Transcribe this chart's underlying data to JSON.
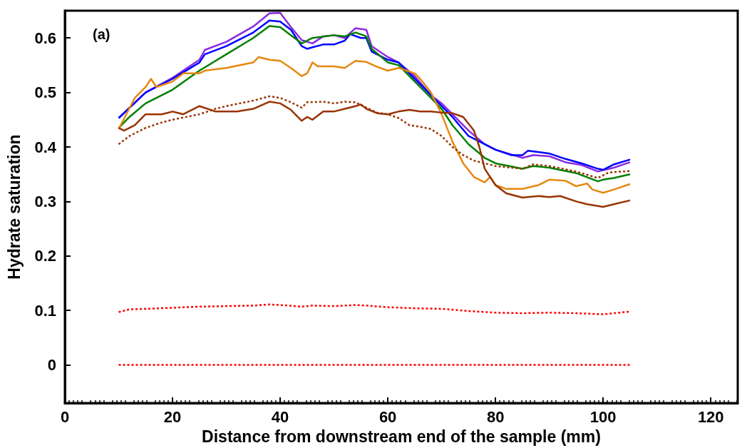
{
  "chart_data": {
    "type": "line",
    "xlabel": "Distance from downstream end of the sample (mm)",
    "ylabel": "Hydrate saturation",
    "annotations": [
      "(a)"
    ],
    "xlim": [
      0,
      125
    ],
    "xticks": [
      0,
      20,
      40,
      60,
      80,
      100,
      120
    ],
    "ylim": [
      -0.07,
      0.65
    ],
    "yticks": [
      0,
      0.1,
      0.2,
      0.3,
      0.4,
      0.5,
      0.6
    ],
    "grid": false,
    "marker": "none",
    "series": [
      {
        "color": "#8a2be2",
        "line_style": "solid",
        "x": [
          10,
          15,
          20,
          25,
          26,
          30,
          35,
          38,
          40,
          42,
          44,
          46,
          48,
          50,
          52,
          54,
          56,
          57,
          60,
          62,
          65,
          68,
          70,
          72,
          75,
          78,
          80,
          85,
          87,
          90,
          93,
          96,
          99,
          102,
          105
        ],
        "values": [
          0.453,
          0.5,
          0.527,
          0.56,
          0.578,
          0.593,
          0.621,
          0.645,
          0.646,
          0.62,
          0.596,
          0.59,
          0.603,
          0.605,
          0.6,
          0.618,
          0.615,
          0.585,
          0.565,
          0.555,
          0.53,
          0.495,
          0.48,
          0.46,
          0.43,
          0.405,
          0.395,
          0.38,
          0.385,
          0.383,
          0.372,
          0.367,
          0.355,
          0.362,
          0.372
        ]
      },
      {
        "color": "#0000ff",
        "line_style": "solid",
        "x": [
          10,
          15,
          20,
          25,
          26,
          30,
          35,
          38,
          40,
          42,
          44,
          45,
          46,
          48,
          50,
          52,
          53,
          55,
          56,
          57,
          60,
          62,
          65,
          68,
          70,
          72,
          75,
          78,
          80,
          83,
          85,
          86,
          90,
          93,
          96,
          99,
          100,
          102,
          105
        ],
        "values": [
          0.453,
          0.5,
          0.525,
          0.555,
          0.57,
          0.585,
          0.61,
          0.632,
          0.63,
          0.615,
          0.585,
          0.58,
          0.583,
          0.588,
          0.588,
          0.595,
          0.607,
          0.6,
          0.6,
          0.575,
          0.56,
          0.555,
          0.525,
          0.495,
          0.475,
          0.455,
          0.42,
          0.405,
          0.395,
          0.385,
          0.385,
          0.393,
          0.388,
          0.378,
          0.37,
          0.36,
          0.358,
          0.368,
          0.377
        ]
      },
      {
        "color": "#008000",
        "line_style": "solid",
        "x": [
          10,
          12,
          15,
          20,
          25,
          30,
          35,
          38,
          40,
          42,
          44,
          46,
          50,
          52,
          54,
          56,
          57,
          60,
          62,
          65,
          68,
          70,
          72,
          75,
          78,
          80,
          85,
          87,
          90,
          95,
          99,
          100,
          102,
          105
        ],
        "values": [
          0.435,
          0.455,
          0.48,
          0.505,
          0.54,
          0.57,
          0.6,
          0.622,
          0.62,
          0.605,
          0.59,
          0.6,
          0.605,
          0.603,
          0.61,
          0.603,
          0.58,
          0.555,
          0.55,
          0.52,
          0.49,
          0.47,
          0.44,
          0.405,
          0.38,
          0.37,
          0.36,
          0.365,
          0.362,
          0.352,
          0.337,
          0.34,
          0.343,
          0.35
        ]
      },
      {
        "color": "#e6880f",
        "line_style": "solid",
        "x": [
          10,
          13,
          15,
          16,
          17,
          20,
          22,
          25,
          26,
          30,
          35,
          36,
          38,
          40,
          42,
          44,
          45,
          46,
          47,
          50,
          52,
          54,
          56,
          58,
          60,
          62,
          65,
          66,
          68,
          70,
          72,
          74,
          76,
          78,
          79,
          80,
          82,
          85,
          88,
          90,
          93,
          95,
          97,
          98,
          100,
          102,
          105
        ],
        "values": [
          0.433,
          0.49,
          0.51,
          0.525,
          0.51,
          0.52,
          0.535,
          0.535,
          0.54,
          0.545,
          0.555,
          0.565,
          0.56,
          0.558,
          0.545,
          0.53,
          0.535,
          0.555,
          0.548,
          0.548,
          0.545,
          0.558,
          0.556,
          0.547,
          0.54,
          0.545,
          0.535,
          0.525,
          0.5,
          0.46,
          0.41,
          0.37,
          0.345,
          0.335,
          0.345,
          0.33,
          0.323,
          0.323,
          0.33,
          0.34,
          0.338,
          0.328,
          0.333,
          0.322,
          0.316,
          0.322,
          0.332
        ]
      },
      {
        "color": "#993300",
        "line_style": "dotted",
        "x": [
          10,
          12,
          15,
          18,
          20,
          25,
          28,
          30,
          35,
          38,
          40,
          42,
          44,
          45,
          48,
          50,
          52,
          54,
          56,
          58,
          60,
          62,
          64,
          66,
          68,
          70,
          72,
          74,
          76,
          80,
          85,
          87,
          90,
          95,
          99,
          101,
          105
        ],
        "values": [
          0.405,
          0.42,
          0.435,
          0.445,
          0.45,
          0.46,
          0.47,
          0.475,
          0.485,
          0.493,
          0.49,
          0.482,
          0.472,
          0.482,
          0.483,
          0.48,
          0.483,
          0.482,
          0.472,
          0.463,
          0.46,
          0.453,
          0.44,
          0.437,
          0.433,
          0.42,
          0.4,
          0.385,
          0.375,
          0.365,
          0.36,
          0.368,
          0.365,
          0.355,
          0.343,
          0.353,
          0.356
        ]
      },
      {
        "color": "#993300",
        "line_style": "solid",
        "x": [
          10,
          11,
          13,
          15,
          18,
          20,
          22,
          25,
          28,
          30,
          32,
          35,
          38,
          40,
          42,
          44,
          45,
          46,
          48,
          50,
          52,
          54,
          55,
          56,
          58,
          60,
          62,
          64,
          66,
          68,
          70,
          72,
          74,
          76,
          77,
          78,
          80,
          82,
          85,
          88,
          90,
          92,
          95,
          97,
          100,
          102,
          105
        ],
        "values": [
          0.435,
          0.43,
          0.44,
          0.46,
          0.46,
          0.465,
          0.46,
          0.475,
          0.465,
          0.465,
          0.465,
          0.47,
          0.483,
          0.48,
          0.468,
          0.448,
          0.455,
          0.45,
          0.465,
          0.465,
          0.47,
          0.475,
          0.478,
          0.47,
          0.462,
          0.46,
          0.465,
          0.468,
          0.465,
          0.465,
          0.463,
          0.462,
          0.455,
          0.43,
          0.4,
          0.36,
          0.33,
          0.315,
          0.307,
          0.31,
          0.308,
          0.31,
          0.3,
          0.295,
          0.29,
          0.295,
          0.302
        ]
      },
      {
        "color": "#ff0000",
        "line_style": "dotted",
        "x": [
          10,
          12,
          15,
          20,
          25,
          30,
          35,
          38,
          40,
          44,
          46,
          50,
          54,
          56,
          60,
          65,
          70,
          75,
          80,
          85,
          90,
          95,
          100,
          102,
          105
        ],
        "values": [
          0.097,
          0.102,
          0.103,
          0.105,
          0.107,
          0.108,
          0.109,
          0.111,
          0.11,
          0.107,
          0.109,
          0.108,
          0.11,
          0.109,
          0.106,
          0.104,
          0.103,
          0.099,
          0.096,
          0.095,
          0.096,
          0.095,
          0.093,
          0.095,
          0.098
        ]
      },
      {
        "color": "#ff0000",
        "line_style": "dotted",
        "x": [
          10,
          105
        ],
        "values": [
          0,
          0
        ]
      }
    ]
  }
}
